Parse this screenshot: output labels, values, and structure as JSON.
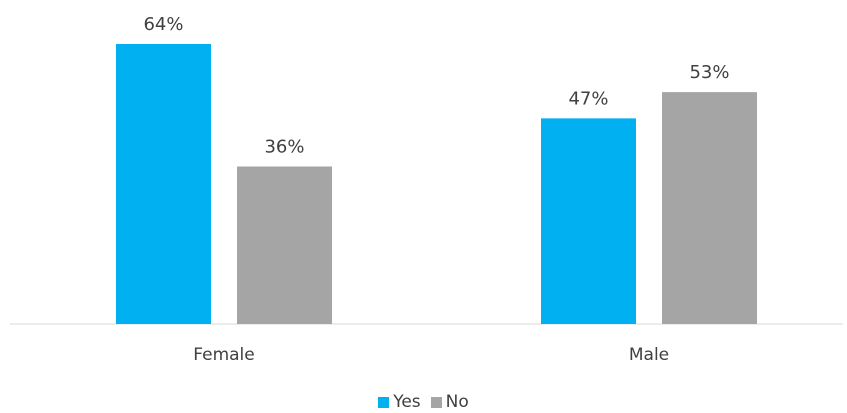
{
  "chart_data": {
    "type": "bar",
    "categories": [
      "Female",
      "Male"
    ],
    "series": [
      {
        "name": "Yes",
        "color": "#00B0F0",
        "values": [
          64,
          47
        ],
        "labels": [
          "64%",
          "47%"
        ]
      },
      {
        "name": "No",
        "color": "#A5A5A5",
        "values": [
          36,
          53
        ],
        "labels": [
          "36%",
          "53%"
        ]
      }
    ],
    "ylim": [
      0,
      70
    ],
    "grid": false,
    "legend_position": "bottom"
  }
}
